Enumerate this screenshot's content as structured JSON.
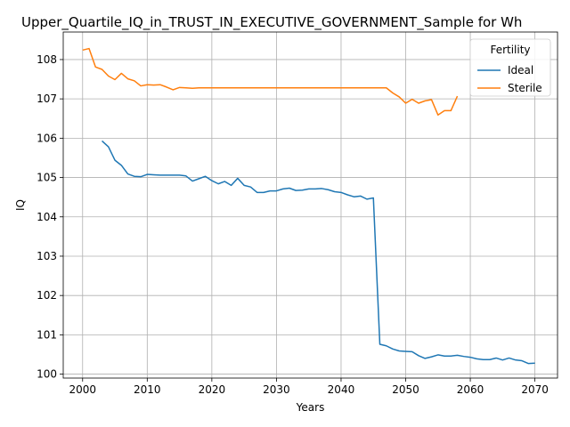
{
  "chart_data": {
    "type": "line",
    "title": "Upper_Quartile_IQ_in_TRUST_IN_EXECUTIVE_GOVERNMENT_Sample for Wh",
    "xlabel": "Years",
    "ylabel": "IQ",
    "xlim": [
      1997,
      2073.5
    ],
    "ylim": [
      99.9,
      108.7
    ],
    "xticks": [
      2000,
      2010,
      2020,
      2030,
      2040,
      2050,
      2060,
      2070
    ],
    "yticks": [
      100,
      101,
      102,
      103,
      104,
      105,
      106,
      107,
      108
    ],
    "grid": true,
    "legend": {
      "title": "Fertility",
      "placement": "top-right"
    },
    "series": [
      {
        "name": "Ideal",
        "color": "#1f77b4",
        "points": [
          [
            2003,
            105.93
          ],
          [
            2004,
            105.78
          ],
          [
            2005,
            105.44
          ],
          [
            2006,
            105.31
          ],
          [
            2007,
            105.09
          ],
          [
            2008,
            105.03
          ],
          [
            2009,
            105.02
          ],
          [
            2010,
            105.08
          ],
          [
            2011,
            105.07
          ],
          [
            2012,
            105.06
          ],
          [
            2013,
            105.06
          ],
          [
            2014,
            105.06
          ],
          [
            2015,
            105.06
          ],
          [
            2016,
            105.04
          ],
          [
            2017,
            104.91
          ],
          [
            2018,
            104.97
          ],
          [
            2019,
            105.03
          ],
          [
            2020,
            104.92
          ],
          [
            2021,
            104.84
          ],
          [
            2022,
            104.9
          ],
          [
            2023,
            104.8
          ],
          [
            2024,
            104.98
          ],
          [
            2025,
            104.8
          ],
          [
            2026,
            104.76
          ],
          [
            2027,
            104.62
          ],
          [
            2028,
            104.62
          ],
          [
            2029,
            104.66
          ],
          [
            2030,
            104.66
          ],
          [
            2031,
            104.71
          ],
          [
            2032,
            104.73
          ],
          [
            2033,
            104.67
          ],
          [
            2034,
            104.68
          ],
          [
            2035,
            104.71
          ],
          [
            2036,
            104.71
          ],
          [
            2037,
            104.72
          ],
          [
            2038,
            104.69
          ],
          [
            2039,
            104.64
          ],
          [
            2040,
            104.62
          ],
          [
            2041,
            104.56
          ],
          [
            2042,
            104.51
          ],
          [
            2043,
            104.53
          ],
          [
            2044,
            104.45
          ],
          [
            2045,
            104.48
          ],
          [
            2046,
            100.76
          ],
          [
            2047,
            100.72
          ],
          [
            2048,
            100.64
          ],
          [
            2049,
            100.59
          ],
          [
            2050,
            100.58
          ],
          [
            2051,
            100.57
          ],
          [
            2052,
            100.47
          ],
          [
            2053,
            100.4
          ],
          [
            2054,
            100.44
          ],
          [
            2055,
            100.49
          ],
          [
            2056,
            100.46
          ],
          [
            2057,
            100.46
          ],
          [
            2058,
            100.48
          ],
          [
            2059,
            100.45
          ],
          [
            2060,
            100.43
          ],
          [
            2061,
            100.39
          ],
          [
            2062,
            100.37
          ],
          [
            2063,
            100.37
          ],
          [
            2064,
            100.41
          ],
          [
            2065,
            100.36
          ],
          [
            2066,
            100.41
          ],
          [
            2067,
            100.36
          ],
          [
            2068,
            100.34
          ],
          [
            2069,
            100.27
          ],
          [
            2070,
            100.28
          ]
        ]
      },
      {
        "name": "Sterile",
        "color": "#ff7f0e",
        "points": [
          [
            2000,
            108.24
          ],
          [
            2001,
            108.28
          ],
          [
            2002,
            107.81
          ],
          [
            2003,
            107.75
          ],
          [
            2004,
            107.58
          ],
          [
            2005,
            107.49
          ],
          [
            2006,
            107.65
          ],
          [
            2007,
            107.51
          ],
          [
            2008,
            107.46
          ],
          [
            2009,
            107.33
          ],
          [
            2010,
            107.36
          ],
          [
            2011,
            107.35
          ],
          [
            2012,
            107.36
          ],
          [
            2013,
            107.3
          ],
          [
            2014,
            107.23
          ],
          [
            2015,
            107.29
          ],
          [
            2016,
            107.28
          ],
          [
            2017,
            107.27
          ],
          [
            2018,
            107.28
          ],
          [
            2019,
            107.28
          ],
          [
            2020,
            107.28
          ],
          [
            2021,
            107.28
          ],
          [
            2022,
            107.28
          ],
          [
            2023,
            107.28
          ],
          [
            2024,
            107.28
          ],
          [
            2025,
            107.28
          ],
          [
            2026,
            107.28
          ],
          [
            2027,
            107.28
          ],
          [
            2028,
            107.28
          ],
          [
            2029,
            107.28
          ],
          [
            2030,
            107.28
          ],
          [
            2031,
            107.28
          ],
          [
            2032,
            107.28
          ],
          [
            2033,
            107.28
          ],
          [
            2034,
            107.28
          ],
          [
            2035,
            107.28
          ],
          [
            2036,
            107.28
          ],
          [
            2037,
            107.28
          ],
          [
            2038,
            107.28
          ],
          [
            2039,
            107.28
          ],
          [
            2040,
            107.28
          ],
          [
            2041,
            107.28
          ],
          [
            2042,
            107.28
          ],
          [
            2043,
            107.28
          ],
          [
            2044,
            107.28
          ],
          [
            2045,
            107.28
          ],
          [
            2046,
            107.28
          ],
          [
            2047,
            107.28
          ],
          [
            2048,
            107.15
          ],
          [
            2049,
            107.05
          ],
          [
            2050,
            106.89
          ],
          [
            2051,
            106.99
          ],
          [
            2052,
            106.89
          ],
          [
            2053,
            106.95
          ],
          [
            2054,
            106.98
          ],
          [
            2055,
            106.59
          ],
          [
            2056,
            106.7
          ],
          [
            2057,
            106.7
          ],
          [
            2058,
            107.07
          ]
        ]
      }
    ]
  }
}
